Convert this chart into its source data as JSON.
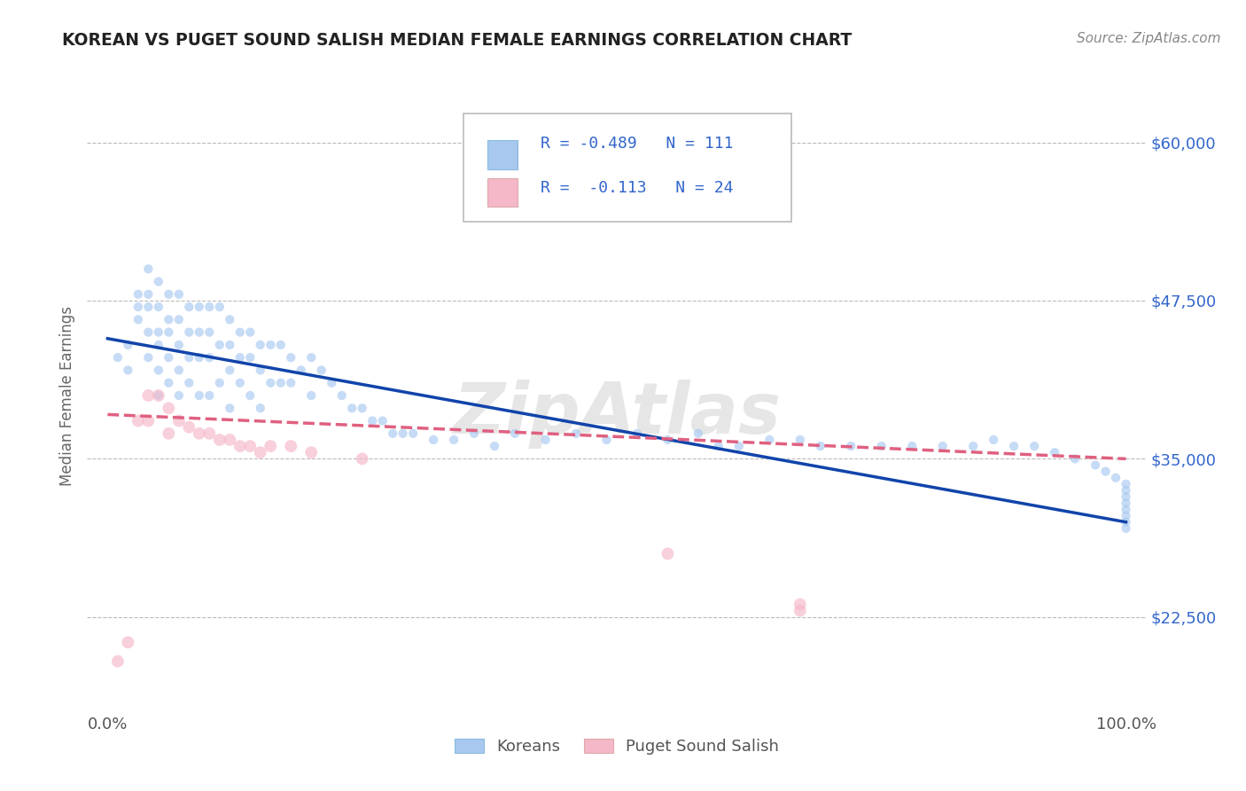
{
  "title": "KOREAN VS PUGET SOUND SALISH MEDIAN FEMALE EARNINGS CORRELATION CHART",
  "source_text": "Source: ZipAtlas.com",
  "ylabel": "Median Female Earnings",
  "xlim": [
    -0.02,
    1.02
  ],
  "ylim": [
    15000,
    65000
  ],
  "yticks": [
    22500,
    35000,
    47500,
    60000
  ],
  "ytick_labels": [
    "$22,500",
    "$35,000",
    "$47,500",
    "$60,000"
  ],
  "xticks": [
    0.0,
    1.0
  ],
  "xtick_labels": [
    "0.0%",
    "100.0%"
  ],
  "blue_color": "#A8C8F0",
  "pink_color": "#F5B8C8",
  "blue_line_color": "#1144AA",
  "pink_line_color": "#E06080",
  "grid_color": "#BBBBBB",
  "legend_r1": "R = -0.489",
  "legend_n1": "N = 111",
  "legend_r2": "R =  -0.113",
  "legend_n2": "N = 24",
  "legend_label1": "Koreans",
  "legend_label2": "Puget Sound Salish",
  "korean_x": [
    0.01,
    0.02,
    0.02,
    0.03,
    0.03,
    0.03,
    0.04,
    0.04,
    0.04,
    0.04,
    0.04,
    0.05,
    0.05,
    0.05,
    0.05,
    0.05,
    0.05,
    0.06,
    0.06,
    0.06,
    0.06,
    0.06,
    0.07,
    0.07,
    0.07,
    0.07,
    0.07,
    0.08,
    0.08,
    0.08,
    0.08,
    0.09,
    0.09,
    0.09,
    0.09,
    0.1,
    0.1,
    0.1,
    0.1,
    0.11,
    0.11,
    0.11,
    0.12,
    0.12,
    0.12,
    0.12,
    0.13,
    0.13,
    0.13,
    0.14,
    0.14,
    0.14,
    0.15,
    0.15,
    0.15,
    0.16,
    0.16,
    0.17,
    0.17,
    0.18,
    0.18,
    0.19,
    0.2,
    0.2,
    0.21,
    0.22,
    0.23,
    0.24,
    0.25,
    0.26,
    0.27,
    0.28,
    0.29,
    0.3,
    0.32,
    0.34,
    0.36,
    0.38,
    0.4,
    0.43,
    0.46,
    0.49,
    0.52,
    0.55,
    0.58,
    0.6,
    0.62,
    0.65,
    0.68,
    0.7,
    0.73,
    0.76,
    0.79,
    0.82,
    0.85,
    0.87,
    0.89,
    0.91,
    0.93,
    0.95,
    0.97,
    0.98,
    0.99,
    1.0,
    1.0,
    1.0,
    1.0,
    1.0,
    1.0,
    1.0,
    1.0
  ],
  "korean_y": [
    43000,
    44000,
    42000,
    48000,
    47000,
    46000,
    50000,
    48000,
    47000,
    45000,
    43000,
    49000,
    47000,
    45000,
    44000,
    42000,
    40000,
    48000,
    46000,
    45000,
    43000,
    41000,
    48000,
    46000,
    44000,
    42000,
    40000,
    47000,
    45000,
    43000,
    41000,
    47000,
    45000,
    43000,
    40000,
    47000,
    45000,
    43000,
    40000,
    47000,
    44000,
    41000,
    46000,
    44000,
    42000,
    39000,
    45000,
    43000,
    41000,
    45000,
    43000,
    40000,
    44000,
    42000,
    39000,
    44000,
    41000,
    44000,
    41000,
    43000,
    41000,
    42000,
    43000,
    40000,
    42000,
    41000,
    40000,
    39000,
    39000,
    38000,
    38000,
    37000,
    37000,
    37000,
    36500,
    36500,
    37000,
    36000,
    37000,
    36500,
    37000,
    36500,
    37000,
    36500,
    37000,
    36000,
    36000,
    36500,
    36500,
    36000,
    36000,
    36000,
    36000,
    36000,
    36000,
    36500,
    36000,
    36000,
    35500,
    35000,
    34500,
    34000,
    33500,
    33000,
    32500,
    32000,
    31500,
    31000,
    30500,
    30000,
    29500
  ],
  "salish_x": [
    0.01,
    0.02,
    0.03,
    0.04,
    0.04,
    0.05,
    0.06,
    0.06,
    0.07,
    0.08,
    0.09,
    0.1,
    0.11,
    0.12,
    0.13,
    0.14,
    0.15,
    0.16,
    0.18,
    0.2,
    0.25,
    0.55,
    0.68,
    0.68
  ],
  "salish_y": [
    19000,
    20500,
    38000,
    40000,
    38000,
    40000,
    39000,
    37000,
    38000,
    37500,
    37000,
    37000,
    36500,
    36500,
    36000,
    36000,
    35500,
    36000,
    36000,
    35500,
    35000,
    27500,
    23500,
    23000
  ],
  "watermark": "ZipAtlas",
  "background_color": "#FFFFFF",
  "dot_size_korean": 55,
  "dot_size_salish": 100,
  "dot_alpha": 0.65,
  "trend_blue_x0": 0.0,
  "trend_blue_y0": 44500,
  "trend_blue_x1": 1.0,
  "trend_blue_y1": 30000,
  "trend_pink_x0": 0.0,
  "trend_pink_y0": 38500,
  "trend_pink_x1": 1.0,
  "trend_pink_y1": 35000
}
